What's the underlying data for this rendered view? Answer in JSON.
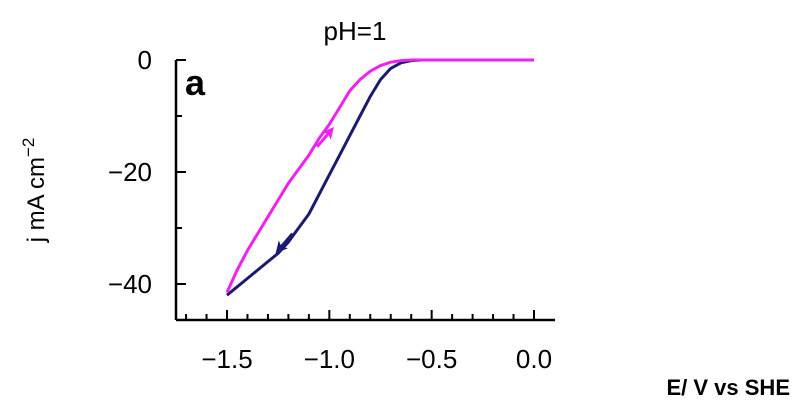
{
  "chart_data": {
    "type": "line",
    "title": "pH=1",
    "panel_label": "a",
    "xlabel": "E/ V vs SHE",
    "ylabel": "j mA cm",
    "ylabel_superscript": "−2",
    "xlim": [
      -1.73,
      0.1
    ],
    "ylim": [
      -43.5,
      2.5
    ],
    "xticks": [
      -1.5,
      -1.0,
      -0.5,
      0.0
    ],
    "xtick_labels": [
      "−1.5",
      "−1.0",
      "−0.5",
      "0.0"
    ],
    "yticks": [
      0,
      -20,
      -40
    ],
    "ytick_labels": [
      "0",
      "−20",
      "−40"
    ],
    "colors": {
      "forward": "#1a1a6e",
      "reverse": "#ee22ee"
    },
    "series": [
      {
        "color_key": "forward",
        "x": [
          0.0,
          -0.55,
          -0.6,
          -0.65,
          -0.7,
          -0.75,
          -0.8,
          -0.85,
          -0.9,
          -0.95,
          -1.0,
          -1.05,
          -1.1,
          -1.15,
          -1.2,
          -1.25,
          -1.3,
          -1.35,
          -1.4,
          -1.45,
          -1.5
        ],
        "y": [
          0.0,
          0.0,
          -0.1,
          -0.5,
          -1.5,
          -3.5,
          -6.5,
          -10.0,
          -13.5,
          -17.0,
          -20.5,
          -24.0,
          -27.5,
          -30.0,
          -32.5,
          -34.5,
          -36.0,
          -37.5,
          -39.0,
          -40.5,
          -42.0
        ]
      },
      {
        "color_key": "reverse",
        "x": [
          -1.5,
          -1.45,
          -1.4,
          -1.35,
          -1.3,
          -1.25,
          -1.2,
          -1.15,
          -1.1,
          -1.05,
          -1.0,
          -0.95,
          -0.9,
          -0.85,
          -0.8,
          -0.75,
          -0.7,
          -0.65,
          -0.6,
          -0.55,
          0.0
        ],
        "y": [
          -41.5,
          -37.5,
          -34.0,
          -31.0,
          -28.0,
          -25.0,
          -22.0,
          -19.5,
          -17.0,
          -14.0,
          -11.5,
          -8.5,
          -5.5,
          -3.5,
          -2.0,
          -1.0,
          -0.4,
          -0.1,
          0.0,
          0.0,
          0.0
        ]
      }
    ],
    "arrows": [
      {
        "color_key": "reverse",
        "from": [
          -1.06,
          -15.5
        ],
        "to": [
          -0.99,
          -12.5
        ]
      },
      {
        "color_key": "forward",
        "from": [
          -1.18,
          -31.0
        ],
        "to": [
          -1.25,
          -34.0
        ]
      }
    ],
    "grid": false,
    "legend": "none"
  }
}
